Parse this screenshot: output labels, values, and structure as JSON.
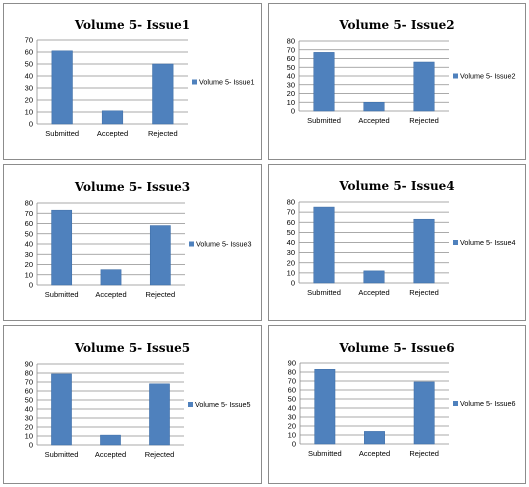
{
  "chart_data": [
    {
      "type": "bar",
      "title": "Volume 5- Issue1",
      "categories": [
        "Submitted",
        "Accepted",
        "Rejected"
      ],
      "series": [
        {
          "name": "Volume 5- Issue1",
          "values": [
            61,
            11,
            50
          ]
        }
      ],
      "ylim": [
        0,
        70
      ],
      "ytick_step": 10,
      "grid": true,
      "legend": "right",
      "color": "#4F81BD"
    },
    {
      "type": "bar",
      "title": "Volume 5- Issue2",
      "categories": [
        "Submitted",
        "Accepted",
        "Rejected"
      ],
      "series": [
        {
          "name": "Volume 5- Issue2",
          "values": [
            67,
            10,
            56
          ]
        }
      ],
      "ylim": [
        0,
        80
      ],
      "ytick_step": 10,
      "grid": true,
      "legend": "right",
      "color": "#4F81BD"
    },
    {
      "type": "bar",
      "title": "Volume 5- Issue3",
      "categories": [
        "Submitted",
        "Accepted",
        "Rejected"
      ],
      "series": [
        {
          "name": "Volume 5- Issue3",
          "values": [
            73,
            15,
            58
          ]
        }
      ],
      "ylim": [
        0,
        80
      ],
      "ytick_step": 10,
      "grid": true,
      "legend": "right",
      "color": "#4F81BD"
    },
    {
      "type": "bar",
      "title": "Volume 5- Issue4",
      "categories": [
        "Submitted",
        "Accepted",
        "Rejected"
      ],
      "series": [
        {
          "name": "Volume 5- Issue4",
          "values": [
            75,
            12,
            63
          ]
        }
      ],
      "ylim": [
        0,
        80
      ],
      "ytick_step": 10,
      "grid": true,
      "legend": "right",
      "color": "#4F81BD"
    },
    {
      "type": "bar",
      "title": "Volume 5- Issue5",
      "categories": [
        "Submitted",
        "Accepted",
        "Rejected"
      ],
      "series": [
        {
          "name": "Volume 5- Issue5",
          "values": [
            79,
            11,
            68
          ]
        }
      ],
      "ylim": [
        0,
        90
      ],
      "ytick_step": 10,
      "grid": true,
      "legend": "right",
      "color": "#4F81BD"
    },
    {
      "type": "bar",
      "title": "Volume 5- Issue6",
      "categories": [
        "Submitted",
        "Accepted",
        "Rejected"
      ],
      "series": [
        {
          "name": "Volume 5- Issue6",
          "values": [
            83,
            14,
            69
          ]
        }
      ],
      "ylim": [
        0,
        90
      ],
      "ytick_step": 10,
      "grid": true,
      "legend": "right",
      "color": "#4F81BD"
    }
  ]
}
